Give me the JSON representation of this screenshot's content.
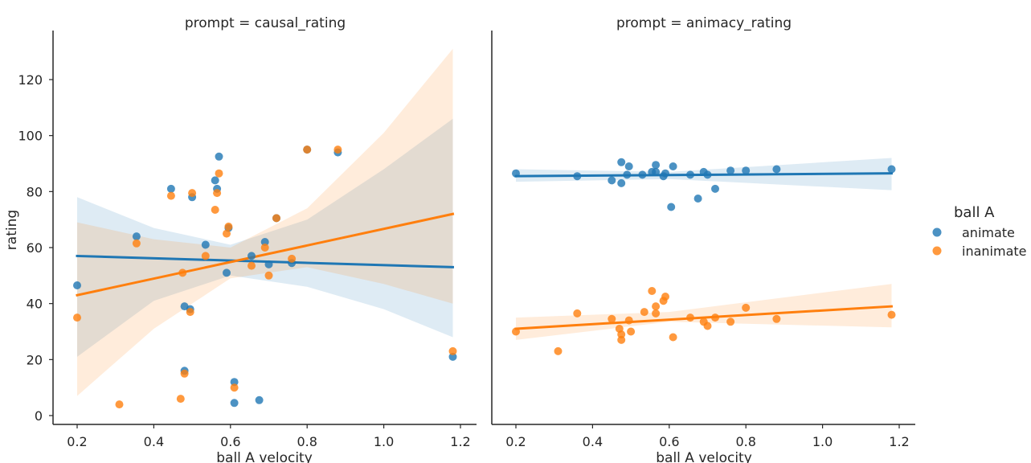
{
  "chart_data": {
    "type": "scatter",
    "kind": "faceted scatter with linear regression fits and 95% confidence bands",
    "shared_y": true,
    "ylabel": "rating",
    "ylim": [
      -3,
      137
    ],
    "yticks": [
      0,
      20,
      40,
      60,
      80,
      100,
      120
    ],
    "xlim": [
      0.14,
      1.24
    ],
    "xticks": [
      0.2,
      0.4,
      0.6,
      0.8,
      1.0,
      1.2
    ],
    "xtick_labels": [
      "0.2",
      "0.4",
      "0.6",
      "0.8",
      "1.0",
      "1.2"
    ],
    "legend": {
      "title": "ball A",
      "placement": "right",
      "entries": [
        {
          "label": "animate",
          "color": "#1f77b4"
        },
        {
          "label": "inanimate",
          "color": "#ff7f0e"
        }
      ]
    },
    "panels": [
      {
        "title": "prompt = causal_rating",
        "xlabel": "ball A velocity",
        "series": [
          {
            "name": "animate",
            "color": "#1f77b4",
            "points": [
              [
                0.2,
                46.5
              ],
              [
                0.355,
                64
              ],
              [
                0.445,
                81
              ],
              [
                0.48,
                39
              ],
              [
                0.48,
                16
              ],
              [
                0.495,
                38
              ],
              [
                0.5,
                78
              ],
              [
                0.535,
                61
              ],
              [
                0.56,
                84
              ],
              [
                0.565,
                81
              ],
              [
                0.57,
                92.5
              ],
              [
                0.59,
                51
              ],
              [
                0.595,
                67
              ],
              [
                0.61,
                4.5
              ],
              [
                0.61,
                12
              ],
              [
                0.655,
                57
              ],
              [
                0.675,
                5.5
              ],
              [
                0.69,
                62
              ],
              [
                0.7,
                54
              ],
              [
                0.72,
                70.5
              ],
              [
                0.76,
                54.5
              ],
              [
                0.8,
                95
              ],
              [
                0.88,
                94
              ],
              [
                1.18,
                21
              ]
            ],
            "fit": {
              "x": [
                0.2,
                1.18
              ],
              "y": [
                57,
                53
              ]
            },
            "band": {
              "x": [
                0.2,
                0.4,
                0.6,
                0.8,
                1.0,
                1.18
              ],
              "lower": [
                21,
                41,
                50,
                46,
                38,
                28
              ],
              "upper": [
                78,
                67,
                61,
                70,
                88,
                106
              ]
            }
          },
          {
            "name": "inanimate",
            "color": "#ff7f0e",
            "points": [
              [
                0.2,
                35
              ],
              [
                0.31,
                4
              ],
              [
                0.355,
                61.5
              ],
              [
                0.445,
                78.5
              ],
              [
                0.475,
                51
              ],
              [
                0.47,
                6
              ],
              [
                0.48,
                15
              ],
              [
                0.495,
                37
              ],
              [
                0.5,
                79.5
              ],
              [
                0.535,
                57
              ],
              [
                0.56,
                73.5
              ],
              [
                0.565,
                79.5
              ],
              [
                0.57,
                86.5
              ],
              [
                0.59,
                65
              ],
              [
                0.595,
                67.5
              ],
              [
                0.61,
                10
              ],
              [
                0.655,
                53.5
              ],
              [
                0.69,
                60
              ],
              [
                0.7,
                50
              ],
              [
                0.72,
                70.5
              ],
              [
                0.76,
                56
              ],
              [
                0.8,
                95
              ],
              [
                0.88,
                95
              ],
              [
                1.18,
                23
              ]
            ],
            "fit": {
              "x": [
                0.2,
                1.18
              ],
              "y": [
                43,
                72
              ]
            },
            "band": {
              "x": [
                0.2,
                0.4,
                0.6,
                0.8,
                1.0,
                1.18
              ],
              "lower": [
                7,
                31,
                49,
                53,
                47,
                40
              ],
              "upper": [
                69,
                63,
                60,
                74,
                101,
                131
              ]
            }
          }
        ]
      },
      {
        "title": "prompt = animacy_rating",
        "xlabel": "ball A velocity",
        "series": [
          {
            "name": "animate",
            "color": "#1f77b4",
            "points": [
              [
                0.2,
                86.5
              ],
              [
                0.36,
                85.5
              ],
              [
                0.45,
                84
              ],
              [
                0.475,
                90.5
              ],
              [
                0.475,
                83
              ],
              [
                0.49,
                86
              ],
              [
                0.495,
                89
              ],
              [
                0.53,
                86
              ],
              [
                0.555,
                87
              ],
              [
                0.565,
                87
              ],
              [
                0.565,
                89.5
              ],
              [
                0.585,
                85.5
              ],
              [
                0.59,
                86.5
              ],
              [
                0.605,
                74.5
              ],
              [
                0.61,
                89
              ],
              [
                0.655,
                86
              ],
              [
                0.675,
                77.5
              ],
              [
                0.69,
                87
              ],
              [
                0.7,
                86
              ],
              [
                0.72,
                81
              ],
              [
                0.76,
                87.5
              ],
              [
                0.8,
                87.5
              ],
              [
                0.88,
                88
              ],
              [
                1.18,
                88
              ]
            ],
            "fit": {
              "x": [
                0.2,
                1.18
              ],
              "y": [
                85.5,
                86.5
              ]
            },
            "band": {
              "x": [
                0.2,
                0.6,
                1.18
              ],
              "lower": [
                83.5,
                84.5,
                80.5
              ],
              "upper": [
                88,
                87,
                92
              ]
            }
          },
          {
            "name": "inanimate",
            "color": "#ff7f0e",
            "points": [
              [
                0.2,
                30
              ],
              [
                0.31,
                23
              ],
              [
                0.36,
                36.5
              ],
              [
                0.45,
                34.5
              ],
              [
                0.47,
                31
              ],
              [
                0.475,
                29
              ],
              [
                0.475,
                27
              ],
              [
                0.495,
                34
              ],
              [
                0.5,
                30
              ],
              [
                0.535,
                37
              ],
              [
                0.555,
                44.5
              ],
              [
                0.565,
                39
              ],
              [
                0.565,
                36.5
              ],
              [
                0.585,
                41
              ],
              [
                0.59,
                42.5
              ],
              [
                0.61,
                28
              ],
              [
                0.655,
                35
              ],
              [
                0.69,
                33.5
              ],
              [
                0.7,
                32
              ],
              [
                0.72,
                35
              ],
              [
                0.76,
                33.5
              ],
              [
                0.8,
                38.5
              ],
              [
                0.88,
                34.5
              ],
              [
                1.18,
                36
              ]
            ],
            "fit": {
              "x": [
                0.2,
                1.18
              ],
              "y": [
                31,
                39
              ]
            },
            "band": {
              "x": [
                0.2,
                0.6,
                1.18
              ],
              "lower": [
                27,
                33.5,
                31.5
              ],
              "upper": [
                35,
                37,
                47
              ]
            }
          }
        ]
      }
    ]
  }
}
